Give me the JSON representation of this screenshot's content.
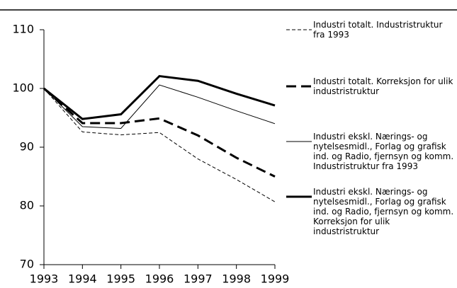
{
  "chart_data": {
    "type": "line",
    "x": [
      1993,
      1994,
      1995,
      1996,
      1997,
      1998,
      1999
    ],
    "xlim": [
      1993,
      1999
    ],
    "xticks": [
      1993,
      1994,
      1995,
      1996,
      1997,
      1998,
      1999
    ],
    "ylim": [
      70,
      110
    ],
    "yticks": [
      70,
      80,
      90,
      100,
      110
    ],
    "series": [
      {
        "name": "Industri totalt. Industristruktur fra 1993",
        "color": "#000000",
        "line_style": "dashed",
        "line_width": "thin",
        "values": [
          100,
          92.6,
          92.1,
          92.5,
          88,
          84.5,
          80.7
        ]
      },
      {
        "name": "Industri totalt. Korreksjon for ulik industristruktur",
        "color": "#000000",
        "line_style": "dashed",
        "line_width": "thick",
        "values": [
          100,
          94.1,
          94.1,
          94.9,
          92,
          88.2,
          85
        ]
      },
      {
        "name": "Industri ekskl. Nærings- og nytelsesmidl., Forlag og grafisk ind. og Radio, fjernsyn og komm. Industristruktur fra 1993",
        "color": "#000000",
        "line_style": "solid",
        "line_width": "thin",
        "values": [
          100,
          93.5,
          93.2,
          100.6,
          98.5,
          96.2,
          94
        ]
      },
      {
        "name": "Industri ekskl. Nærings- og nytelsesmidl., Forlag og grafisk ind. og Radio, fjernsyn og komm. Korreksjon for ulik industristruktur",
        "color": "#000000",
        "line_style": "solid",
        "line_width": "thick",
        "values": [
          100,
          94.8,
          95.6,
          102.1,
          101.3,
          99.1,
          97.1
        ]
      }
    ]
  }
}
